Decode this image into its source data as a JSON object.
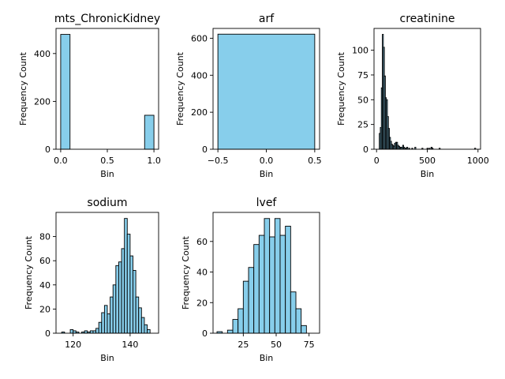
{
  "chart_data": [
    {
      "type": "bar",
      "title": "mts_ChronicKidney",
      "xlabel": "Bin",
      "ylabel": "Frequency Count",
      "xlim": [
        -0.05,
        1.05
      ],
      "ylim": [
        0,
        505
      ],
      "xticks": [
        0.0,
        0.5,
        1.0
      ],
      "xtick_labels": [
        "0.0",
        "0.5",
        "1.0"
      ],
      "yticks": [
        0,
        200,
        400
      ],
      "bins": [
        {
          "x0": 0.0,
          "x1": 0.1,
          "count": 480
        },
        {
          "x0": 0.9,
          "x1": 1.0,
          "count": 142
        }
      ]
    },
    {
      "type": "bar",
      "title": "arf",
      "xlabel": "Bin",
      "ylabel": "Frequency Count",
      "xlim": [
        -0.55,
        0.55
      ],
      "ylim": [
        0,
        653
      ],
      "xticks": [
        -0.5,
        0.0,
        0.5
      ],
      "xtick_labels": [
        "−0.5",
        "0.0",
        "0.5"
      ],
      "yticks": [
        0,
        200,
        400,
        600
      ],
      "bins": [
        {
          "x0": -0.5,
          "x1": 0.5,
          "count": 622
        }
      ]
    },
    {
      "type": "bar",
      "title": "creatinine",
      "xlabel": "Bin",
      "ylabel": "Frequency Count",
      "xlim": [
        -25,
        1025
      ],
      "ylim": [
        0,
        122
      ],
      "xticks": [
        0,
        500,
        1000
      ],
      "xtick_labels": [
        "0",
        "500",
        "1000"
      ],
      "yticks": [
        0,
        25,
        50,
        75,
        100
      ],
      "bins": [
        {
          "x0": 27,
          "x1": 37,
          "count": 16
        },
        {
          "x0": 37,
          "x1": 47,
          "count": 22
        },
        {
          "x0": 47,
          "x1": 57,
          "count": 62
        },
        {
          "x0": 57,
          "x1": 67,
          "count": 116
        },
        {
          "x0": 67,
          "x1": 77,
          "count": 103
        },
        {
          "x0": 77,
          "x1": 87,
          "count": 74
        },
        {
          "x0": 87,
          "x1": 97,
          "count": 52
        },
        {
          "x0": 97,
          "x1": 107,
          "count": 50
        },
        {
          "x0": 107,
          "x1": 117,
          "count": 33
        },
        {
          "x0": 117,
          "x1": 127,
          "count": 21
        },
        {
          "x0": 127,
          "x1": 137,
          "count": 12
        },
        {
          "x0": 137,
          "x1": 147,
          "count": 8
        },
        {
          "x0": 147,
          "x1": 157,
          "count": 5
        },
        {
          "x0": 157,
          "x1": 167,
          "count": 4
        },
        {
          "x0": 167,
          "x1": 177,
          "count": 3
        },
        {
          "x0": 177,
          "x1": 187,
          "count": 6
        },
        {
          "x0": 187,
          "x1": 197,
          "count": 7
        },
        {
          "x0": 197,
          "x1": 207,
          "count": 7
        },
        {
          "x0": 207,
          "x1": 217,
          "count": 4
        },
        {
          "x0": 217,
          "x1": 227,
          "count": 3
        },
        {
          "x0": 227,
          "x1": 237,
          "count": 2
        },
        {
          "x0": 237,
          "x1": 247,
          "count": 2
        },
        {
          "x0": 247,
          "x1": 257,
          "count": 2
        },
        {
          "x0": 257,
          "x1": 267,
          "count": 4
        },
        {
          "x0": 267,
          "x1": 277,
          "count": 2
        },
        {
          "x0": 277,
          "x1": 287,
          "count": 1
        },
        {
          "x0": 287,
          "x1": 297,
          "count": 1
        },
        {
          "x0": 297,
          "x1": 307,
          "count": 2
        },
        {
          "x0": 317,
          "x1": 327,
          "count": 1
        },
        {
          "x0": 347,
          "x1": 357,
          "count": 1
        },
        {
          "x0": 377,
          "x1": 387,
          "count": 2
        },
        {
          "x0": 447,
          "x1": 457,
          "count": 1
        },
        {
          "x0": 497,
          "x1": 507,
          "count": 1
        },
        {
          "x0": 517,
          "x1": 527,
          "count": 1
        },
        {
          "x0": 537,
          "x1": 547,
          "count": 2
        },
        {
          "x0": 547,
          "x1": 557,
          "count": 1
        },
        {
          "x0": 617,
          "x1": 627,
          "count": 1
        },
        {
          "x0": 967,
          "x1": 977,
          "count": 1
        }
      ]
    },
    {
      "type": "bar",
      "title": "sodium",
      "xlabel": "Bin",
      "ylabel": "Frequency Count",
      "xlim": [
        114,
        150
      ],
      "ylim": [
        0,
        100
      ],
      "xticks": [
        120,
        140
      ],
      "xtick_labels": [
        "120",
        "140"
      ],
      "yticks": [
        0,
        20,
        40,
        60,
        80
      ],
      "bins": [
        {
          "x0": 116,
          "x1": 117,
          "count": 1
        },
        {
          "x0": 117,
          "x1": 118,
          "count": 0
        },
        {
          "x0": 118,
          "x1": 119,
          "count": 0
        },
        {
          "x0": 119,
          "x1": 120,
          "count": 3
        },
        {
          "x0": 120,
          "x1": 121,
          "count": 2
        },
        {
          "x0": 121,
          "x1": 122,
          "count": 1
        },
        {
          "x0": 122,
          "x1": 123,
          "count": 0
        },
        {
          "x0": 123,
          "x1": 124,
          "count": 1
        },
        {
          "x0": 124,
          "x1": 125,
          "count": 2
        },
        {
          "x0": 125,
          "x1": 126,
          "count": 1
        },
        {
          "x0": 126,
          "x1": 127,
          "count": 2
        },
        {
          "x0": 127,
          "x1": 128,
          "count": 2
        },
        {
          "x0": 128,
          "x1": 129,
          "count": 4
        },
        {
          "x0": 129,
          "x1": 130,
          "count": 9
        },
        {
          "x0": 130,
          "x1": 131,
          "count": 17
        },
        {
          "x0": 131,
          "x1": 132,
          "count": 23
        },
        {
          "x0": 132,
          "x1": 133,
          "count": 16
        },
        {
          "x0": 133,
          "x1": 134,
          "count": 30
        },
        {
          "x0": 134,
          "x1": 135,
          "count": 40
        },
        {
          "x0": 135,
          "x1": 136,
          "count": 56
        },
        {
          "x0": 136,
          "x1": 137,
          "count": 59
        },
        {
          "x0": 137,
          "x1": 138,
          "count": 70
        },
        {
          "x0": 138,
          "x1": 139,
          "count": 95
        },
        {
          "x0": 139,
          "x1": 140,
          "count": 82
        },
        {
          "x0": 140,
          "x1": 141,
          "count": 64
        },
        {
          "x0": 141,
          "x1": 142,
          "count": 52
        },
        {
          "x0": 142,
          "x1": 143,
          "count": 30
        },
        {
          "x0": 143,
          "x1": 144,
          "count": 21
        },
        {
          "x0": 144,
          "x1": 145,
          "count": 13
        },
        {
          "x0": 145,
          "x1": 146,
          "count": 7
        },
        {
          "x0": 146,
          "x1": 147,
          "count": 3
        }
      ]
    },
    {
      "type": "bar",
      "title": "lvef",
      "xlabel": "Bin",
      "ylabel": "Frequency Count",
      "xlim": [
        2,
        83
      ],
      "ylim": [
        0,
        79
      ],
      "xticks": [
        25,
        50,
        75
      ],
      "xtick_labels": [
        "25",
        "50",
        "75"
      ],
      "yticks": [
        0,
        20,
        40,
        60
      ],
      "bins": [
        {
          "x0": 5.0,
          "x1": 9.0,
          "count": 1
        },
        {
          "x0": 9.0,
          "x1": 13.0,
          "count": 0
        },
        {
          "x0": 13.0,
          "x1": 17.0,
          "count": 2
        },
        {
          "x0": 17.0,
          "x1": 21.0,
          "count": 9
        },
        {
          "x0": 21.0,
          "x1": 25.0,
          "count": 16
        },
        {
          "x0": 25.0,
          "x1": 29.0,
          "count": 34
        },
        {
          "x0": 29.0,
          "x1": 33.0,
          "count": 43
        },
        {
          "x0": 33.0,
          "x1": 37.0,
          "count": 58
        },
        {
          "x0": 37.0,
          "x1": 41.0,
          "count": 64
        },
        {
          "x0": 41.0,
          "x1": 45.0,
          "count": 75
        },
        {
          "x0": 45.0,
          "x1": 49.0,
          "count": 63
        },
        {
          "x0": 49.0,
          "x1": 53.0,
          "count": 75
        },
        {
          "x0": 53.0,
          "x1": 57.0,
          "count": 64
        },
        {
          "x0": 57.0,
          "x1": 61.0,
          "count": 70
        },
        {
          "x0": 61.0,
          "x1": 65.0,
          "count": 27
        },
        {
          "x0": 65.0,
          "x1": 69.0,
          "count": 16
        },
        {
          "x0": 69.0,
          "x1": 73.0,
          "count": 5
        }
      ]
    }
  ],
  "colors": {
    "bar_fill": "#87ceeb",
    "bar_edge": "#000000"
  }
}
